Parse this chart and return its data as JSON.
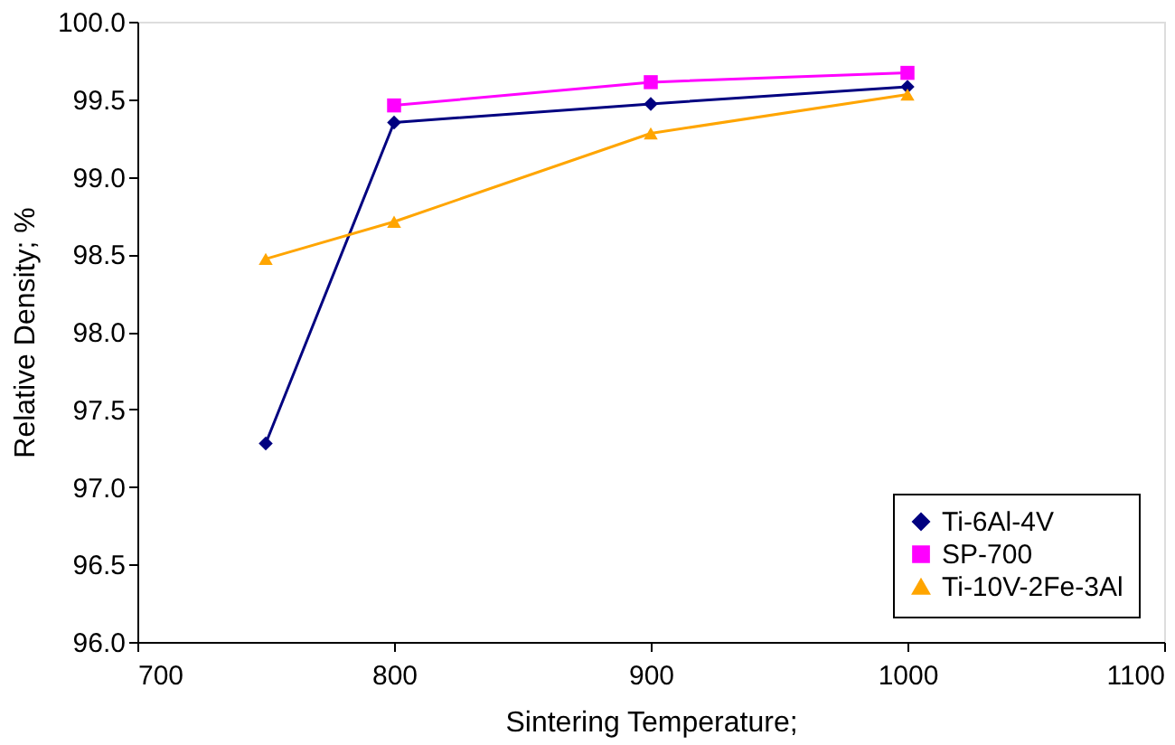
{
  "chart_data": {
    "type": "line",
    "xlabel": "Sintering Temperature;",
    "ylabel": "Relative Density; %",
    "xlim": [
      700,
      1100
    ],
    "xticks": [
      700,
      800,
      900,
      1000,
      1100
    ],
    "ylim": [
      96.0,
      100.0
    ],
    "yticks": [
      {
        "value": 96,
        "label": "96.0"
      },
      {
        "value": 96.5,
        "label": "96.5"
      },
      {
        "value": 97,
        "label": "97.0"
      },
      {
        "value": 97.5,
        "label": "97.5"
      },
      {
        "value": 98,
        "label": "98.0"
      },
      {
        "value": 98.5,
        "label": "98.5"
      },
      {
        "value": 99,
        "label": "99.0"
      },
      {
        "value": 99.5,
        "label": "99.5"
      },
      {
        "value": 100,
        "label": "100.0"
      }
    ],
    "grid": false,
    "legend": "bottom right",
    "line_style": "solid",
    "series": [
      {
        "name": "Ti-6Al-4V",
        "color": "#000080",
        "marker": "diamond",
        "x": [
          750,
          800,
          900,
          1000
        ],
        "values": [
          97.28,
          99.35,
          99.47,
          99.58
        ]
      },
      {
        "name": "SP-700",
        "color": "#ff00ff",
        "marker": "square",
        "x": [
          800,
          900,
          1000
        ],
        "values": [
          99.46,
          99.61,
          99.67
        ]
      },
      {
        "name": "Ti-10V-2Fe-3Al",
        "color": "#ffa500",
        "marker": "triangle",
        "x": [
          750,
          800,
          900,
          1000
        ],
        "values": [
          98.47,
          98.71,
          99.28,
          99.53
        ]
      }
    ]
  }
}
